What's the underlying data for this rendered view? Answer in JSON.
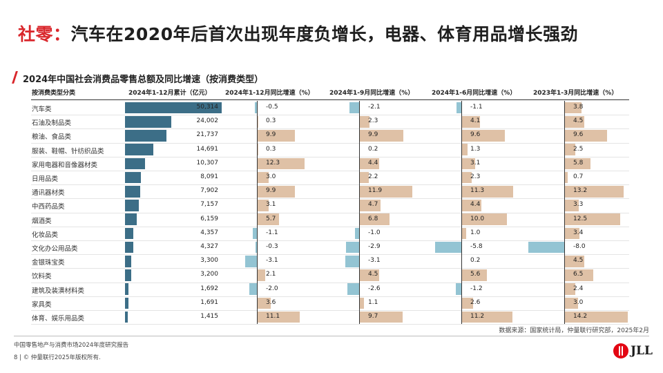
{
  "title": {
    "prefix": "社零：",
    "main": "汽车在2020年后首次出现年度负增长，电器、体育用品增长强劲"
  },
  "subtitle": "2024年中国社会消费品零售总额及同比增速（按消费类型）",
  "headers": {
    "category": "按消费类型分类",
    "total": "2024年1-12月累计（亿元）",
    "g1": "2024年1-12月同比增速（%）",
    "g2": "2024年1-9月同比增速（%）",
    "g3": "2024年1-6月同比增速（%）",
    "g4": "2023年1-3月同比增速（%）"
  },
  "colors": {
    "title_red": "#d9262b",
    "total_bar": "#3c6e87",
    "positive_bar": "#dfc1a6",
    "negative_bar": "#93c4d3"
  },
  "chart_data": {
    "type": "table",
    "title": "2024年中国社会消费品零售总额及同比增速（按消费类型）",
    "categories": [
      "汽车类",
      "石油及制品类",
      "粮油、食品类",
      "服装、鞋帽、针纺织品类",
      "家用电器和音像器材类",
      "日用品类",
      "通讯器材类",
      "中西药品类",
      "烟酒类",
      "化妆品类",
      "文化办公用品类",
      "金银珠宝类",
      "饮料类",
      "建筑及装潢材料类",
      "家具类",
      "体育、娱乐用品类"
    ],
    "total": {
      "name": "2024年1-12月累计（亿元）",
      "values": [
        50314,
        24002,
        21737,
        14691,
        10307,
        8091,
        7902,
        7157,
        6159,
        4357,
        4327,
        3300,
        3200,
        1692,
        1691,
        1415
      ],
      "labels": [
        "50,314",
        "24,002",
        "21,737",
        "14,691",
        "10,307",
        "8,091",
        "7,902",
        "7,157",
        "6,159",
        "4,357",
        "4,327",
        "3,300",
        "3,200",
        "1,692",
        "1,691",
        "1,415"
      ]
    },
    "series": [
      {
        "name": "2024年1-12月同比增速（%）",
        "values": [
          -0.5,
          0.3,
          9.9,
          0.3,
          12.3,
          3.0,
          9.9,
          3.1,
          5.7,
          -1.1,
          -0.3,
          -3.1,
          2.1,
          -2.0,
          3.6,
          11.1
        ],
        "labels": [
          "-0.5",
          "0.3",
          "9.9",
          "0.3",
          "12.3",
          "3.0",
          "9.9",
          "3.1",
          "5.7",
          "-1.1",
          "-0.3",
          "-3.1",
          "2.1",
          "-2.0",
          "3.6",
          "11.1"
        ]
      },
      {
        "name": "2024年1-9月同比增速（%）",
        "values": [
          -2.1,
          2.3,
          9.9,
          0.2,
          4.4,
          2.2,
          11.9,
          4.7,
          6.8,
          -1.0,
          -2.9,
          -3.1,
          4.5,
          -2.6,
          1.1,
          9.7
        ],
        "labels": [
          "-2.1",
          "2.3",
          "9.9",
          "0.2",
          "4.4",
          "2.2",
          "11.9",
          "4.7",
          "6.8",
          "-1.0",
          "-2.9",
          "-3.1",
          "4.5",
          "-2.6",
          "1.1",
          "9.7"
        ]
      },
      {
        "name": "2024年1-6月同比增速（%）",
        "values": [
          -1.1,
          4.1,
          9.6,
          1.3,
          3.1,
          2.3,
          11.3,
          4.4,
          10.0,
          1.0,
          -5.8,
          0.2,
          5.6,
          -1.2,
          2.6,
          11.2
        ],
        "labels": [
          "-1.1",
          "4.1",
          "9.6",
          "1.3",
          "3.1",
          "2.3",
          "11.3",
          "4.4",
          "10.0",
          "1.0",
          "-5.8",
          "0.2",
          "5.6",
          "-1.2",
          "2.6",
          "11.2"
        ]
      },
      {
        "name": "2023年1-3月同比增速（%）",
        "values": [
          3.8,
          4.5,
          9.6,
          2.5,
          5.8,
          0.7,
          13.2,
          3.3,
          12.5,
          3.4,
          -8.0,
          4.5,
          6.5,
          2.4,
          3.0,
          14.2
        ],
        "labels": [
          "3.8",
          "4.5",
          "9.6",
          "2.5",
          "5.8",
          "0.7",
          "13.2",
          "3.3",
          "12.5",
          "3.4",
          "-8.0",
          "4.5",
          "6.5",
          "2.4",
          "3.0",
          "14.2"
        ]
      }
    ]
  },
  "source": "数据来源：国家统计局，仲量联行研究部，2025年2月",
  "footer": {
    "report": "中国零售地产与消费市场2024年度研究报告",
    "copyright": "8 | © 仲量联行2025年版权所有."
  },
  "logo": {
    "text": "JLL"
  }
}
